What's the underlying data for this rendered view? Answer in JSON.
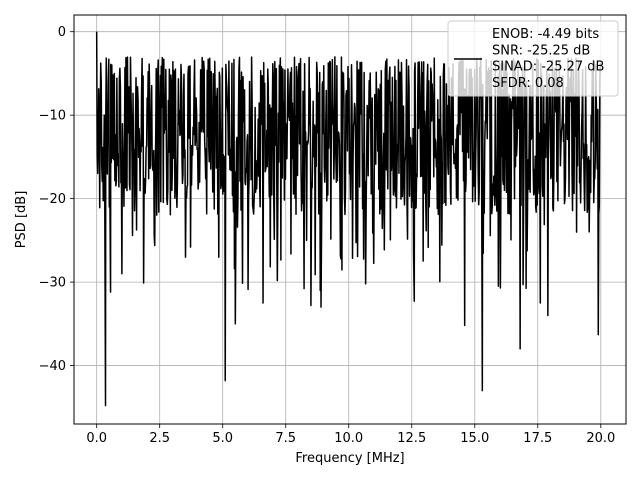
{
  "chart_data": {
    "type": "line",
    "title": "",
    "xlabel": "Frequency [MHz]",
    "ylabel": "PSD [dB]",
    "xlim": [
      -0.9,
      21.0
    ],
    "ylim": [
      -47.0,
      2.0
    ],
    "xticks": [
      0.0,
      2.5,
      5.0,
      7.5,
      10.0,
      12.5,
      15.0,
      17.5,
      20.0
    ],
    "xtick_labels": [
      "0.0",
      "2.5",
      "5.0",
      "7.5",
      "10.0",
      "12.5",
      "15.0",
      "17.5",
      "20.0"
    ],
    "yticks": [
      0,
      -10,
      -20,
      -30,
      -40
    ],
    "ytick_labels": [
      "0",
      "−10",
      "−20",
      "−30",
      "−40"
    ],
    "grid": true,
    "legend_position": "top-right",
    "series": [
      {
        "color": "#000000",
        "x_range": [
          0.0,
          20.0
        ],
        "baseline_db": -13.5,
        "spread_db": [
          -22.0,
          -3.0
        ],
        "approx_points": 1000,
        "notable_points": [
          {
            "x": 0.0,
            "y": 0.0
          },
          {
            "x": 0.35,
            "y": -44.8
          },
          {
            "x": 0.55,
            "y": -31.2
          },
          {
            "x": 1.0,
            "y": -29.0
          },
          {
            "x": 5.1,
            "y": -41.8
          },
          {
            "x": 5.5,
            "y": -35.0
          },
          {
            "x": 6.6,
            "y": -32.5
          },
          {
            "x": 8.5,
            "y": -32.8
          },
          {
            "x": 8.9,
            "y": -33.0
          },
          {
            "x": 12.6,
            "y": -32.3
          },
          {
            "x": 14.6,
            "y": -35.2
          },
          {
            "x": 15.3,
            "y": -43.0
          },
          {
            "x": 16.8,
            "y": -38.0
          },
          {
            "x": 17.6,
            "y": -32.5
          },
          {
            "x": 17.9,
            "y": -34.0
          },
          {
            "x": 19.9,
            "y": -36.3
          }
        ]
      }
    ],
    "legend": {
      "lines": [
        "ENOB: -4.49 bits",
        "SNR: -25.25 dB",
        "SINAD: -25.27 dB",
        "SFDR: 0.08"
      ]
    }
  }
}
